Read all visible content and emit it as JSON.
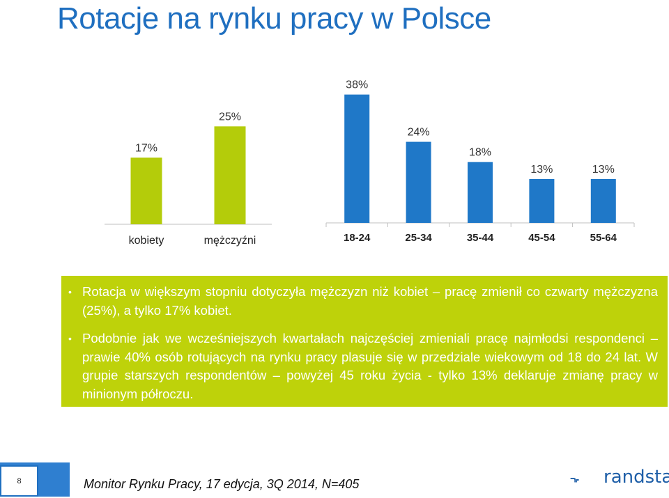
{
  "title": "Rotacje na rynku pracy w Polsce",
  "chart_data": [
    {
      "type": "bar",
      "categories": [
        "kobiety",
        "mężczyźni"
      ],
      "values": [
        17,
        25
      ],
      "data_labels": [
        "17%",
        "25%"
      ],
      "ylim": [
        0,
        40
      ],
      "color": "#b4cc0a",
      "grid": false
    },
    {
      "type": "bar",
      "categories": [
        "18-24",
        "25-34",
        "35-44",
        "45-54",
        "55-64"
      ],
      "values": [
        38,
        24,
        18,
        13,
        13
      ],
      "data_labels": [
        "38%",
        "24%",
        "18%",
        "13%",
        "13%"
      ],
      "ylim": [
        0,
        40
      ],
      "color": "#1f78c8",
      "grid": false
    }
  ],
  "bullets": [
    "Rotacja w większym stopniu dotyczyła mężczyzn niż kobiet – pracę zmienił co czwarty mężczyzna (25%), a tylko 17% kobiet.",
    "Podobnie jak we wcześniejszych kwartałach najczęściej zmieniali pracę najmłodsi respondenci – prawie 40% osób rotujących na rynku pracy plasuje się w przedziale wiekowym od 18 do 24 lat. W grupie starszych respondentów – powyżej 45 roku życia - tylko 13% deklaruje zmianę pracy w minionym półroczu."
  ],
  "footer": {
    "page_number": "8",
    "source": "Monitor Rynku Pracy, 17 edycja,  3Q 2014, N=405",
    "brand": "randstad"
  },
  "colors": {
    "title": "#1f6fc0",
    "green_box": "#bed20a",
    "blue_accent": "#2f7fd0"
  }
}
